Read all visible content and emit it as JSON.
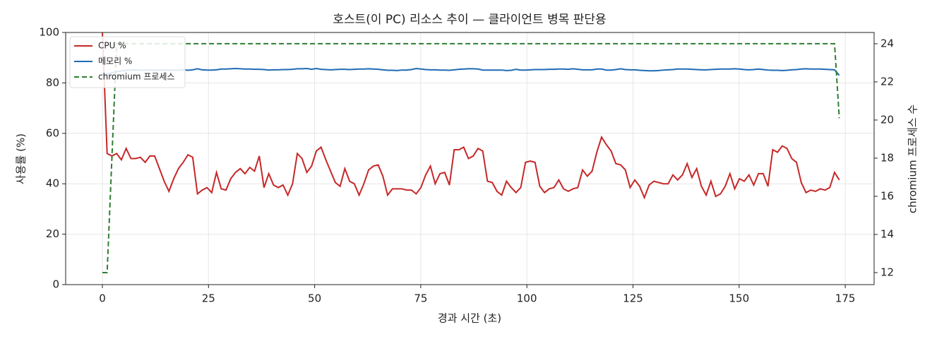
{
  "chart_data": {
    "type": "line",
    "title": "호스트(이 PC) 리소스 추이 — 클라이언트 병목 판단용",
    "x_label": "경과 시간 (초)",
    "y_label": "사용률 (%)",
    "y2_label": "chromium 프로세스 수",
    "xlim": [
      -8.65,
      181.8
    ],
    "xticks": [
      0,
      25,
      50,
      75,
      100,
      125,
      150,
      175
    ],
    "ylim": [
      0,
      100
    ],
    "yticks": [
      0,
      20,
      40,
      60,
      80,
      100
    ],
    "y2lim": [
      11.37,
      24.59
    ],
    "y2ticks": [
      12,
      14,
      16,
      18,
      20,
      22,
      24
    ],
    "grid": true,
    "legend": "upper left",
    "x": [
      0,
      1.12,
      2.24,
      3.36,
      4.48,
      5.6,
      6.72,
      7.84,
      8.96,
      10.08,
      11.2,
      12.32,
      13.44,
      14.56,
      15.68,
      16.8,
      17.92,
      19.04,
      20.16,
      21.28,
      22.4,
      23.52,
      24.64,
      25.76,
      26.88,
      28,
      29.12,
      30.24,
      31.36,
      32.48,
      33.6,
      34.72,
      35.84,
      36.96,
      38.08,
      39.2,
      40.32,
      41.44,
      42.56,
      43.68,
      44.8,
      45.92,
      47.04,
      48.16,
      49.28,
      50.4,
      51.52,
      52.64,
      53.76,
      54.88,
      56,
      57.12,
      58.24,
      59.36,
      60.48,
      61.6,
      62.72,
      63.84,
      64.96,
      66.08,
      67.2,
      68.32,
      69.44,
      70.56,
      71.68,
      72.8,
      73.92,
      75.04,
      76.16,
      77.28,
      78.4,
      79.52,
      80.64,
      81.76,
      82.88,
      84,
      85.12,
      86.24,
      87.36,
      88.48,
      89.6,
      90.72,
      91.84,
      92.96,
      94.08,
      95.2,
      96.32,
      97.44,
      98.56,
      99.68,
      100.8,
      101.92,
      103.04,
      104.16,
      105.28,
      106.4,
      107.52,
      108.64,
      109.76,
      110.88,
      112,
      113.12,
      114.24,
      115.36,
      116.48,
      117.6,
      118.72,
      119.84,
      120.96,
      122.08,
      123.2,
      124.32,
      125.44,
      126.56,
      127.68,
      128.8,
      129.92,
      131.04,
      132.16,
      133.28,
      134.4,
      135.52,
      136.64,
      137.76,
      138.88,
      140,
      141.12,
      142.24,
      143.36,
      144.48,
      145.6,
      146.72,
      147.84,
      148.96,
      150.08,
      151.2,
      152.32,
      153.44,
      154.56,
      155.68,
      156.8,
      157.92,
      159.04,
      160.16,
      161.28,
      162.4,
      163.52,
      164.64,
      165.76,
      166.88,
      168,
      169.12,
      170.24,
      171.36,
      172.48,
      173.6
    ],
    "series": [
      {
        "name": "CPU %",
        "color": "#c62828",
        "linestyle": "solid",
        "axis": "y",
        "values": [
          100,
          52,
          51,
          52,
          49.5,
          54,
          50,
          50,
          50.5,
          48.5,
          51,
          51,
          46,
          41,
          37,
          42,
          46,
          48.5,
          51.5,
          50.5,
          36,
          37.5,
          38.5,
          36.5,
          44.5,
          38,
          37.5,
          42,
          44.5,
          46,
          44,
          46.5,
          45,
          51,
          38.5,
          44,
          39.5,
          38.5,
          39.5,
          35.5,
          40,
          52,
          50,
          44.5,
          47,
          53,
          54.5,
          49.5,
          45,
          40.5,
          39,
          46,
          41,
          40,
          35.5,
          40,
          45.5,
          47,
          47.5,
          43,
          35.5,
          38,
          38,
          38,
          37.5,
          37.5,
          36,
          38.5,
          43.5,
          47,
          40,
          44,
          44.5,
          39.5,
          53.5,
          53.5,
          54.5,
          50,
          51,
          54,
          53,
          41,
          40.5,
          37,
          35.5,
          41,
          38.5,
          36.5,
          38.5,
          48.5,
          49,
          48.5,
          39,
          36.5,
          38,
          38.5,
          41.5,
          38,
          37,
          38,
          38.5,
          45.5,
          43,
          45,
          52.5,
          58.5,
          55.5,
          53,
          48,
          47.5,
          45.5,
          38.5,
          41.5,
          39,
          34.5,
          39.5,
          41,
          40.5,
          40,
          40,
          43.5,
          41.5,
          43.5,
          48,
          42.5,
          46,
          39,
          35.5,
          41,
          35,
          36,
          39,
          44,
          38,
          42,
          41,
          43.5,
          39.5,
          44,
          44,
          39,
          53.5,
          52.5,
          55,
          54,
          50,
          48.5,
          40.5,
          36.5,
          37.5,
          37,
          38,
          37.5,
          38.5,
          44.5,
          41.5
        ]
      },
      {
        "name": "메모리 %",
        "color": "#1f6bb5",
        "linestyle": "solid",
        "axis": "y",
        "values": [
          83,
          83.5,
          84,
          84.5,
          84.8,
          85,
          85.1,
          85.2,
          85,
          85.1,
          85.2,
          85,
          85.1,
          85.2,
          85.1,
          85,
          85.1,
          85.2,
          85,
          85.2,
          85.6,
          85.2,
          85.1,
          85.1,
          85.2,
          85.5,
          85.5,
          85.6,
          85.7,
          85.6,
          85.5,
          85.5,
          85.4,
          85.4,
          85.3,
          85.1,
          85.2,
          85.2,
          85.3,
          85.3,
          85.4,
          85.6,
          85.6,
          85.7,
          85.4,
          85.7,
          85.4,
          85.3,
          85.2,
          85.3,
          85.4,
          85.4,
          85.3,
          85.4,
          85.5,
          85.5,
          85.6,
          85.5,
          85.4,
          85.2,
          85,
          85,
          84.9,
          85.1,
          85.1,
          85.3,
          85.7,
          85.5,
          85.3,
          85.2,
          85.2,
          85.1,
          85.1,
          85,
          85.2,
          85.4,
          85.5,
          85.6,
          85.6,
          85.5,
          85.1,
          85.1,
          85.1,
          85.1,
          85.1,
          84.9,
          85,
          85.4,
          85.1,
          85.1,
          85.2,
          85.3,
          85.3,
          85.3,
          85.4,
          85.4,
          85.5,
          85.5,
          85.4,
          85.6,
          85.4,
          85.2,
          85.2,
          85.2,
          85.5,
          85.5,
          85.1,
          85.1,
          85.3,
          85.6,
          85.3,
          85.2,
          85.2,
          85,
          84.9,
          84.8,
          84.8,
          84.9,
          85.1,
          85.2,
          85.3,
          85.5,
          85.5,
          85.5,
          85.4,
          85.3,
          85.2,
          85.2,
          85.3,
          85.4,
          85.5,
          85.5,
          85.5,
          85.6,
          85.5,
          85.3,
          85.2,
          85.3,
          85.5,
          85.3,
          85.1,
          85,
          85,
          84.9,
          85,
          85.2,
          85.3,
          85.5,
          85.6,
          85.5,
          85.5,
          85.5,
          85.4,
          85.3,
          85.2,
          83
        ]
      },
      {
        "name": "chromium 프로세스",
        "color": "#2e7d32",
        "linestyle": "dashed",
        "axis": "y2",
        "values": [
          12,
          12,
          18,
          24,
          24,
          24,
          24,
          24,
          24,
          24,
          24,
          24,
          24,
          24,
          24,
          24,
          24,
          24,
          24,
          24,
          24,
          24,
          24,
          24,
          24,
          24,
          24,
          24,
          24,
          24,
          24,
          24,
          24,
          24,
          24,
          24,
          24,
          24,
          24,
          24,
          24,
          24,
          24,
          24,
          24,
          24,
          24,
          24,
          24,
          24,
          24,
          24,
          24,
          24,
          24,
          24,
          24,
          24,
          24,
          24,
          24,
          24,
          24,
          24,
          24,
          24,
          24,
          24,
          24,
          24,
          24,
          24,
          24,
          24,
          24,
          24,
          24,
          24,
          24,
          24,
          24,
          24,
          24,
          24,
          24,
          24,
          24,
          24,
          24,
          24,
          24,
          24,
          24,
          24,
          24,
          24,
          24,
          24,
          24,
          24,
          24,
          24,
          24,
          24,
          24,
          24,
          24,
          24,
          24,
          24,
          24,
          24,
          24,
          24,
          24,
          24,
          24,
          24,
          24,
          24,
          24,
          24,
          24,
          24,
          24,
          24,
          24,
          24,
          24,
          24,
          24,
          24,
          24,
          24,
          24,
          24,
          24,
          24,
          24,
          24,
          24,
          24,
          24,
          24,
          24,
          24,
          24,
          24,
          24,
          24,
          24,
          24,
          24,
          24,
          24,
          20.1
        ]
      }
    ]
  }
}
